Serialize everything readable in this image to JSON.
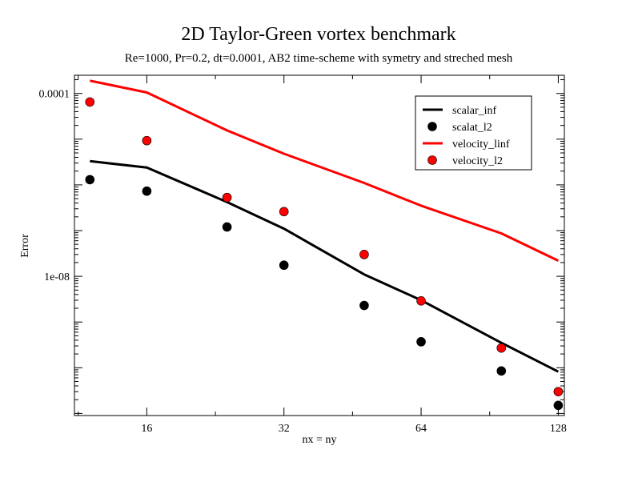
{
  "chart_data": {
    "type": "scatter",
    "title": "2D Taylor-Green vortex benchmark",
    "subtitle": "Re=1000, Pr=0.2, dt=0.0001, AB2 time-scheme with symetry and streched mesh",
    "xlabel": "nx = ny",
    "ylabel": "Error",
    "x_scale": "log2",
    "y_scale": "log10",
    "xlim": [
      11.1,
      132
    ],
    "ylim": [
      9e-12,
      0.00025
    ],
    "x_ticks": [
      {
        "value": 16,
        "label": "16"
      },
      {
        "value": 32,
        "label": "32"
      },
      {
        "value": 64,
        "label": "64"
      },
      {
        "value": 128,
        "label": "128"
      }
    ],
    "y_ticks": [
      {
        "value": 0.0001,
        "label": "0.0001"
      },
      {
        "value": 1e-08,
        "label": "1e-08"
      }
    ],
    "legend_position": "top-right",
    "grid": false,
    "series": [
      {
        "name": "scalar_inf",
        "style": "line",
        "color": "#000000",
        "x": [
          12,
          16,
          24,
          32,
          48,
          64,
          96,
          128
        ],
        "y": [
          3.3e-06,
          2.4e-06,
          4.2e-07,
          1.1e-07,
          1.1e-08,
          3e-09,
          3.5e-10,
          8.2e-11
        ]
      },
      {
        "name": "scalat_l2",
        "style": "marker",
        "color": "#000000",
        "x": [
          12,
          16,
          24,
          32,
          48,
          64,
          96,
          128
        ],
        "y": [
          1.3e-06,
          7.3e-07,
          1.2e-07,
          1.75e-08,
          2.3e-09,
          3.7e-10,
          8.5e-11,
          1.5e-11
        ]
      },
      {
        "name": "velocity_linf",
        "style": "line",
        "color": "#ff0000",
        "x": [
          12,
          16,
          24,
          32,
          48,
          64,
          96,
          128
        ],
        "y": [
          0.00019,
          0.000105,
          1.55e-05,
          4.8e-06,
          1.1e-06,
          3.5e-07,
          8.7e-08,
          2.2e-08
        ]
      },
      {
        "name": "velocity_l2",
        "style": "marker",
        "color": "#ff0000",
        "x": [
          12,
          16,
          24,
          32,
          48,
          64,
          96,
          128
        ],
        "y": [
          6.5e-05,
          9.3e-06,
          5.3e-07,
          2.6e-07,
          3e-08,
          2.9e-09,
          2.7e-10,
          3e-11
        ]
      }
    ]
  }
}
